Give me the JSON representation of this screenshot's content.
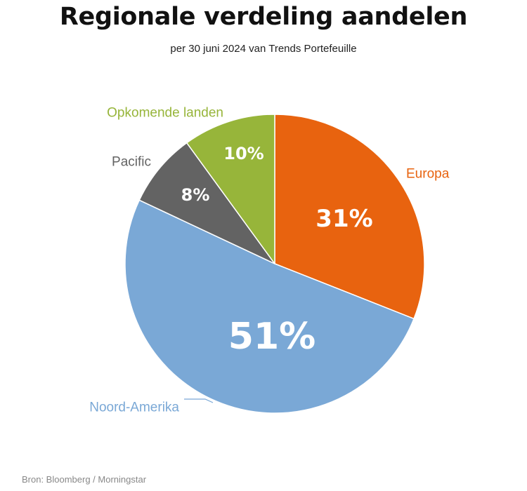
{
  "colors": {
    "europa": "#e8630f",
    "noord_amerika": "#7aa8d6",
    "pacific": "#636363",
    "opkomende_landen": "#97b53a"
  },
  "chart_data": {
    "type": "pie",
    "title": "Regionale verdeling aandelen",
    "subtitle": "per 30 juni 2024 van Trends Portefeuille",
    "slices": [
      {
        "label": "Europa",
        "value": 31,
        "value_label": "31%",
        "color": "#e8630f"
      },
      {
        "label": "Noord-Amerika",
        "value": 51,
        "value_label": "51%",
        "color": "#7aa8d6"
      },
      {
        "label": "Pacific",
        "value": 8,
        "value_label": "8%",
        "color": "#636363"
      },
      {
        "label": "Opkomende landen",
        "value": 10,
        "value_label": "10%",
        "color": "#97b53a"
      }
    ],
    "start": "12 o'clock",
    "direction": "clockwise",
    "legend": "none"
  },
  "source": "Bron: Bloomberg / Morningstar"
}
